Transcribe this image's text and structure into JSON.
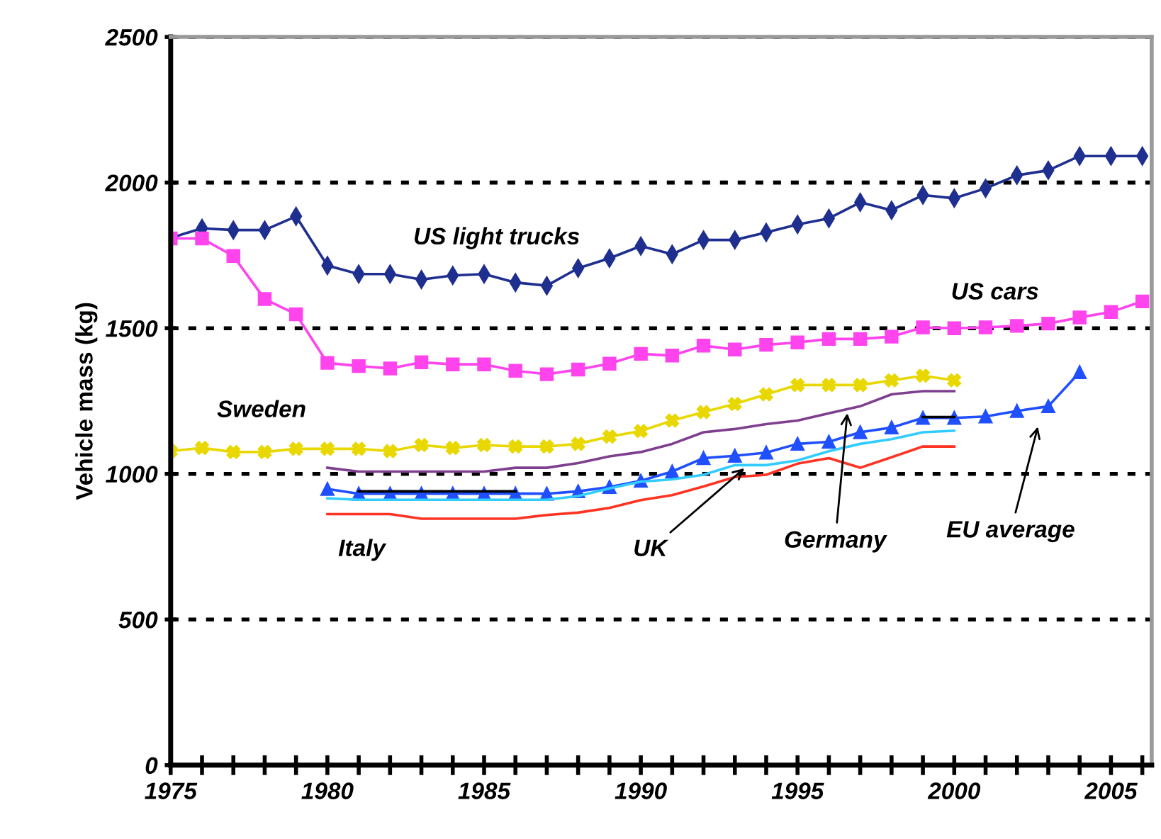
{
  "chart_data": {
    "type": "line",
    "ylabel": "Vehicle mass (kg)",
    "x": [
      1975,
      1976,
      1977,
      1978,
      1979,
      1980,
      1981,
      1982,
      1983,
      1984,
      1985,
      1986,
      1987,
      1988,
      1989,
      1990,
      1991,
      1992,
      1993,
      1994,
      1995,
      1996,
      1997,
      1998,
      1999,
      2000,
      2001,
      2002,
      2003,
      2004,
      2005,
      2006
    ],
    "series": [
      {
        "name": "US light trucks",
        "color": "#1f2f8f",
        "marker": "diamond",
        "values": [
          1810,
          1843,
          1837,
          1837,
          1884,
          1715,
          1686,
          1686,
          1667,
          1681,
          1686,
          1657,
          1646,
          1706,
          1740,
          1782,
          1754,
          1803,
          1803,
          1829,
          1856,
          1877,
          1932,
          1905,
          1957,
          1946,
          1980,
          2025,
          2042,
          2091,
          2091,
          2091
        ]
      },
      {
        "name": "US cars",
        "color": "#ff44ee",
        "marker": "square",
        "values": [
          1808,
          1808,
          1748,
          1600,
          1548,
          1381,
          1370,
          1362,
          1383,
          1376,
          1376,
          1354,
          1342,
          1358,
          1378,
          1412,
          1406,
          1440,
          1427,
          1443,
          1451,
          1463,
          1463,
          1471,
          1503,
          1500,
          1503,
          1508,
          1516,
          1537,
          1556,
          1592
        ]
      },
      {
        "name": "Sweden",
        "color": "#e8d800",
        "marker": "cross",
        "values": [
          1078,
          1089,
          1075,
          1075,
          1086,
          1086,
          1086,
          1078,
          1099,
          1089,
          1099,
          1094,
          1094,
          1103,
          1128,
          1147,
          1183,
          1212,
          1240,
          1273,
          1305,
          1305,
          1305,
          1321,
          1337,
          1321,
          null,
          null,
          null,
          null,
          null,
          null
        ]
      },
      {
        "name": "Germany",
        "color": "#7f3f8f",
        "marker": "none",
        "values": [
          null,
          null,
          null,
          null,
          null,
          1021,
          1008,
          1008,
          1008,
          1008,
          1008,
          1021,
          1021,
          1037,
          1060,
          1075,
          1103,
          1143,
          1154,
          1171,
          1183,
          1208,
          1232,
          1273,
          1284,
          1284,
          null,
          null,
          null,
          null,
          null,
          null
        ]
      },
      {
        "name": "EU average",
        "color": "#1f4fff",
        "marker": "triangle",
        "values": [
          null,
          null,
          null,
          null,
          null,
          948,
          932,
          932,
          932,
          932,
          932,
          932,
          932,
          940,
          955,
          976,
          1008,
          1054,
          1062,
          1073,
          1103,
          1110,
          1143,
          1159,
          1192,
          1192,
          1197,
          1216,
          1232,
          1349,
          null,
          null
        ]
      },
      {
        "color": "#000000",
        "marker": "none",
        "values": [
          null,
          null,
          null,
          null,
          null,
          null,
          940,
          940,
          940,
          940,
          940,
          940,
          null,
          null,
          null,
          null,
          null,
          null,
          null,
          null,
          null,
          null,
          null,
          null,
          1195,
          1195,
          null,
          null,
          null,
          null,
          null,
          null
        ]
      },
      {
        "name": "UK",
        "color": "#33ccff",
        "marker": "none",
        "values": [
          null,
          null,
          null,
          null,
          null,
          916,
          911,
          911,
          911,
          911,
          911,
          911,
          911,
          924,
          950,
          973,
          981,
          997,
          1030,
          1030,
          1046,
          1078,
          1103,
          1119,
          1143,
          1148,
          null,
          null,
          null,
          null,
          null,
          null
        ]
      },
      {
        "name": "Italy",
        "color": "#ff3322",
        "marker": "none",
        "values": [
          null,
          null,
          null,
          null,
          null,
          862,
          862,
          862,
          846,
          846,
          846,
          846,
          859,
          867,
          883,
          910,
          927,
          957,
          989,
          997,
          1035,
          1054,
          1021,
          1057,
          1094,
          1094,
          null,
          null,
          null,
          null,
          null,
          null
        ]
      }
    ],
    "xlim": [
      1975,
      2006.3
    ],
    "ylim": [
      0,
      2500
    ],
    "xticks": [
      1975,
      {
        "value": 1976,
        "label": null
      },
      {
        "value": 1977,
        "label": null
      },
      {
        "value": 1978,
        "label": null
      },
      {
        "value": 1979,
        "label": null
      },
      1980,
      {
        "value": 1981,
        "label": null
      },
      {
        "value": 1982,
        "label": null
      },
      {
        "value": 1983,
        "label": null
      },
      {
        "value": 1984,
        "label": null
      },
      1985,
      {
        "value": 1986,
        "label": null
      },
      {
        "value": 1987,
        "label": null
      },
      {
        "value": 1988,
        "label": null
      },
      {
        "value": 1989,
        "label": null
      },
      1990,
      {
        "value": 1991,
        "label": null
      },
      {
        "value": 1992,
        "label": null
      },
      {
        "value": 1993,
        "label": null
      },
      {
        "value": 1994,
        "label": null
      },
      1995,
      {
        "value": 1996,
        "label": null
      },
      {
        "value": 1997,
        "label": null
      },
      {
        "value": 1998,
        "label": null
      },
      {
        "value": 1999,
        "label": null
      },
      2000,
      {
        "value": 2001,
        "label": null
      },
      {
        "value": 2002,
        "label": null
      },
      {
        "value": 2003,
        "label": null
      },
      {
        "value": 2004,
        "label": null
      },
      2005,
      {
        "value": 2006,
        "label": null
      }
    ],
    "yticks": [
      0,
      500,
      1000,
      1500,
      2000,
      2500
    ],
    "grid": "y",
    "legend": false
  }
}
